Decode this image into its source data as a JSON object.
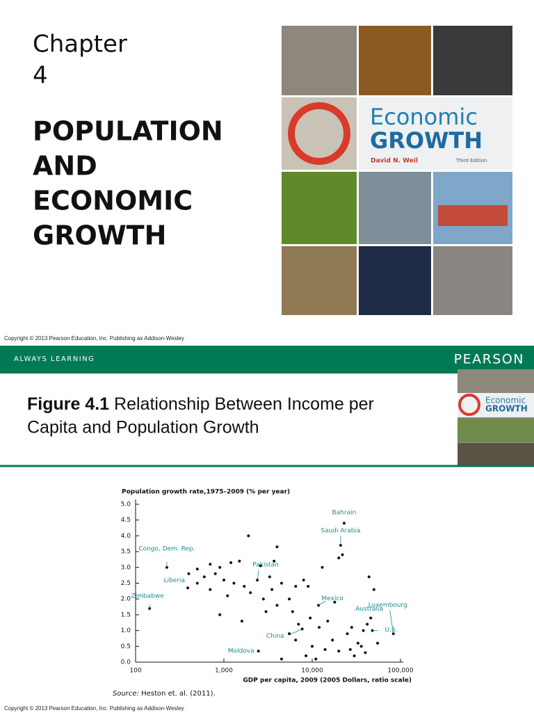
{
  "slide1": {
    "chapter": "Chapter",
    "number": "4",
    "title_lines": [
      "POPULATION",
      "AND",
      "ECONOMIC",
      "GROWTH"
    ],
    "cover": {
      "title_line1": "Economic",
      "title_line2": "GROWTH",
      "author": "David N. Weil",
      "edition": "Third Edition"
    },
    "copyright": "Copyright © 2013 Pearson Education, Inc. Publishing as Addison-Wesley"
  },
  "banner": {
    "left": "ALWAYS LEARNING",
    "right": "PEARSON"
  },
  "figure": {
    "label": "Figure 4.1",
    "title_line1": "Relationship Between Income per",
    "title_line2": "Capita and Population Growth",
    "source_prefix": "Source:",
    "source": "Heston et. al. (2011).",
    "copyright": "Copyright © 2013 Pearson Education, Inc. Publishing as Addison-Wesley"
  },
  "chart_data": {
    "type": "scatter",
    "ylabel": "Population growth rate,1975–2009 (% per year)",
    "xlabel": "GDP per capita, 2009 (2005 Dollars, ratio scale)",
    "xscale": "log",
    "color": "#111111",
    "label_color": "#1a8a8a",
    "xlim": [
      100,
      100000
    ],
    "xticks": [
      100,
      {
        "value": 1000,
        "label": "1,000"
      },
      {
        "value": 10000,
        "label": "10,000"
      },
      {
        "value": 100000,
        "label": "100,000"
      }
    ],
    "ylim": [
      0,
      5
    ],
    "yticks": [
      {
        "value": 0,
        "label": "0.0"
      },
      0.5,
      {
        "value": 1,
        "label": "1.0"
      },
      1.5,
      {
        "value": 2,
        "label": "2.0"
      },
      2.5,
      {
        "value": 3,
        "label": "3.0"
      },
      3.5,
      {
        "value": 4,
        "label": "4.0"
      },
      4.5,
      {
        "value": 5,
        "label": "5.0"
      }
    ],
    "x": [
      226,
      390,
      144,
      2390,
      2460,
      7700,
      11800,
      23000,
      21000,
      83000,
      46000,
      48000,
      1900,
      4000,
      3700,
      1200,
      1500,
      700,
      900,
      500,
      600,
      800,
      1000,
      1300,
      1700,
      2000,
      2800,
      3500,
      4500,
      5500,
      6500,
      8000,
      9000,
      13000,
      20000,
      22000,
      44000,
      50000,
      1100,
      1600,
      900,
      3000,
      4000,
      6000,
      7000,
      9500,
      12000,
      15000,
      18000,
      25000,
      28000,
      33000,
      36000,
      40000,
      30000,
      27000,
      20000,
      14000,
      10000,
      8500,
      6500,
      5500,
      4500,
      11000,
      38000,
      42000,
      55000,
      17000,
      3300,
      2600,
      700,
      500,
      400
    ],
    "values": [
      3.0,
      2.35,
      1.7,
      2.6,
      0.35,
      1.05,
      1.8,
      4.4,
      3.7,
      0.9,
      1.4,
      1.0,
      4.0,
      3.65,
      3.2,
      3.15,
      3.2,
      3.1,
      3.0,
      2.95,
      2.7,
      2.8,
      2.6,
      2.5,
      2.4,
      2.2,
      2.0,
      2.3,
      2.5,
      2.0,
      2.4,
      2.6,
      2.4,
      3.0,
      3.3,
      3.4,
      2.7,
      2.3,
      2.1,
      1.3,
      1.5,
      1.6,
      1.8,
      1.6,
      1.2,
      1.4,
      1.1,
      1.3,
      1.9,
      0.9,
      1.1,
      0.6,
      0.5,
      0.3,
      0.2,
      0.4,
      0.35,
      0.4,
      0.5,
      0.2,
      0.7,
      0.9,
      0.1,
      0.1,
      1.0,
      1.2,
      0.6,
      0.7,
      2.7,
      3.05,
      2.3,
      2.5,
      2.8
    ],
    "point_labels": [
      "Congo, Dem. Rep.",
      "Liberia",
      "Zimbabwe",
      "Pakistan",
      "Moldova",
      "China",
      "Mexico",
      "Bahrain",
      "Saudi Arabia",
      "Luxembourg",
      "Australia",
      "U.S.",
      null,
      null,
      null,
      null,
      null,
      null,
      null,
      null,
      null,
      null,
      null,
      null,
      null,
      null,
      null,
      null,
      null,
      null,
      null,
      null,
      null,
      null,
      null,
      null,
      null,
      null,
      null,
      null,
      null,
      null,
      null,
      null,
      null,
      null,
      null,
      null,
      null,
      null,
      null,
      null,
      null,
      null,
      null,
      null,
      null,
      null,
      null,
      null,
      null,
      null,
      null,
      null,
      null,
      null,
      null,
      null,
      null,
      null,
      null,
      null,
      null
    ]
  }
}
